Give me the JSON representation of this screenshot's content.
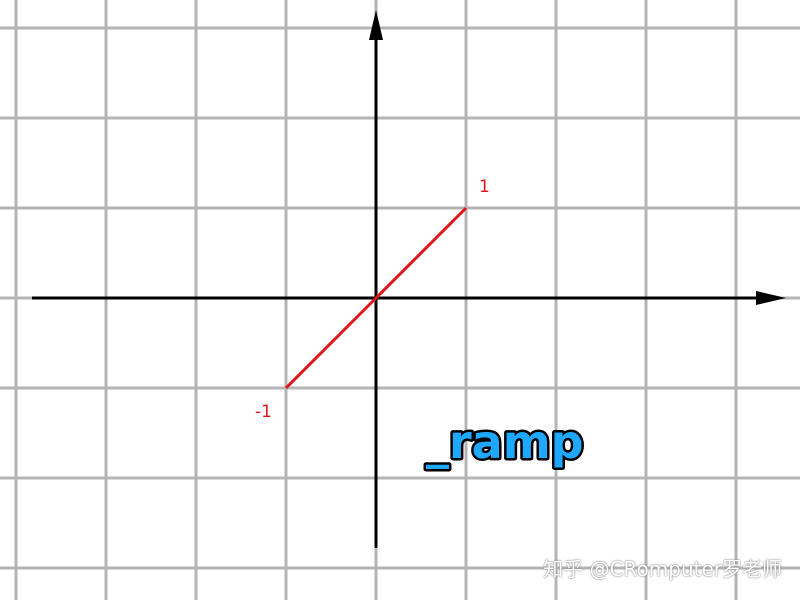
{
  "diagram": {
    "grid_step_units": 1,
    "x_axis_range": [
      -4,
      4
    ],
    "y_axis_range": [
      -3,
      3
    ],
    "curve": {
      "points": [
        [
          -1,
          -1
        ],
        [
          0,
          0
        ],
        [
          1,
          1
        ]
      ],
      "color": "#e0161e"
    },
    "point_labels": {
      "upper": "1",
      "lower": "-1"
    },
    "function_label": {
      "text": "_ramp",
      "color": "#1ea8ff"
    }
  },
  "watermark": {
    "text": "知乎 @CRomputer罗老师"
  }
}
